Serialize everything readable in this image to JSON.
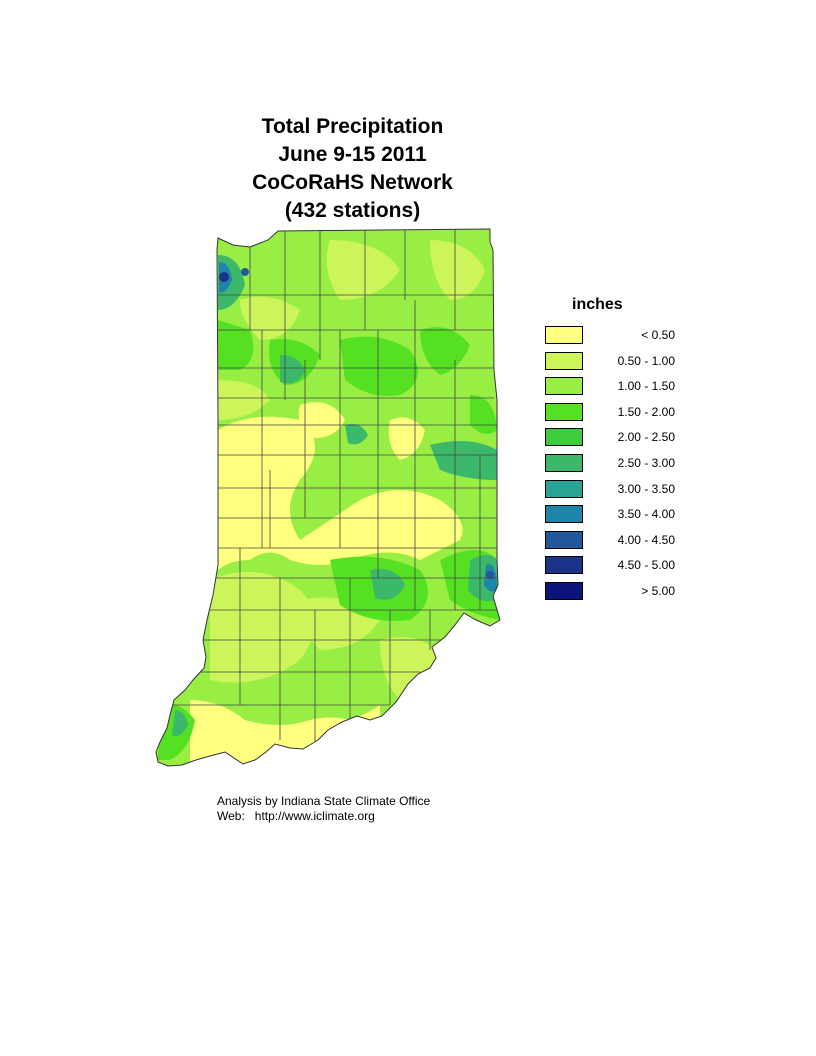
{
  "title": {
    "line1": "Total Precipitation",
    "line2": "June 9-15 2011",
    "line3": "CoCoRaHS Network",
    "line4": "(432 stations)"
  },
  "legend": {
    "title": "inches",
    "items": [
      {
        "label": "< 0.50",
        "color": "#ffff80"
      },
      {
        "label": "0.50 - 1.00",
        "color": "#ccf55c"
      },
      {
        "label": "1.00 - 1.50",
        "color": "#99ee44"
      },
      {
        "label": "1.50 - 2.00",
        "color": "#55e022"
      },
      {
        "label": "2.00 - 2.50",
        "color": "#3ccc3c"
      },
      {
        "label": "2.50 - 3.00",
        "color": "#3cb86a"
      },
      {
        "label": "3.00 - 3.50",
        "color": "#2ba394"
      },
      {
        "label": "3.50 - 4.00",
        "color": "#1f84aa"
      },
      {
        "label": "4.00 - 4.50",
        "color": "#22589a"
      },
      {
        "label": "4.50 - 5.00",
        "color": "#1a3388"
      },
      {
        "label": "> 5.00",
        "color": "#0c137a"
      }
    ]
  },
  "credits": {
    "line1": "Analysis by Indiana State Climate Office",
    "line2": "Web:   http://www.iclimate.org"
  }
}
